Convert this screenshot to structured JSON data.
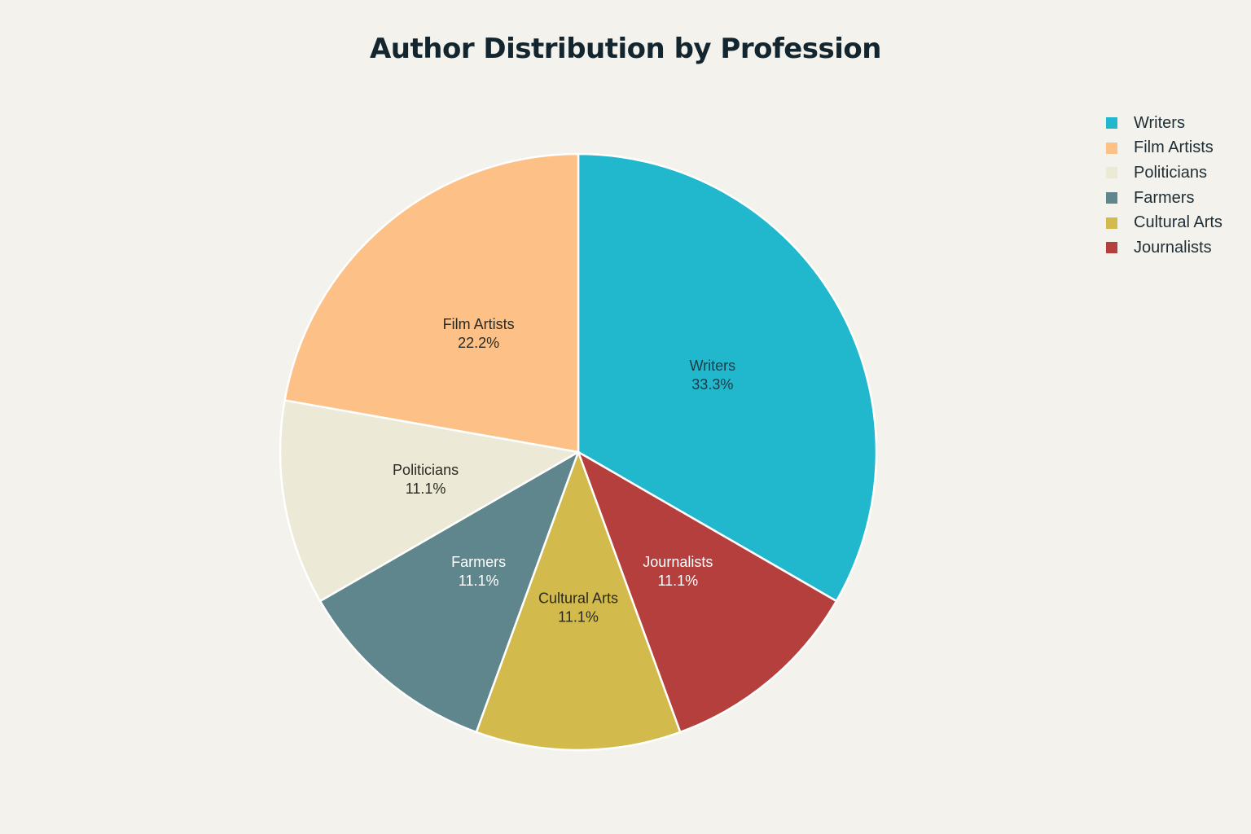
{
  "title": "Author Distribution by Profession",
  "chart_data": {
    "type": "pie",
    "title": "Author Distribution by Profession",
    "slices": [
      {
        "label": "Writers",
        "value": 33.3,
        "display": "33.3%",
        "color": "#21b7cd",
        "text_color": "#1f3a44"
      },
      {
        "label": "Journalists",
        "value": 11.1,
        "display": "11.1%",
        "color": "#b43f3d",
        "text_color": "#ffffff"
      },
      {
        "label": "Cultural Arts",
        "value": 11.1,
        "display": "11.1%",
        "color": "#d2bb4c",
        "text_color": "#2a2a22"
      },
      {
        "label": "Farmers",
        "value": 11.1,
        "display": "11.1%",
        "color": "#5e868c",
        "text_color": "#ffffff"
      },
      {
        "label": "Politicians",
        "value": 11.1,
        "display": "11.1%",
        "color": "#ecead6",
        "text_color": "#2a2a22"
      },
      {
        "label": "Film Artists",
        "value": 22.2,
        "display": "22.2%",
        "color": "#fdc086",
        "text_color": "#2a2a22"
      }
    ],
    "legend": {
      "placement": "top-right",
      "order": [
        "Writers",
        "Film Artists",
        "Politicians",
        "Farmers",
        "Cultural Arts",
        "Journalists"
      ]
    },
    "direction": "clockwise",
    "start_angle": "top"
  }
}
